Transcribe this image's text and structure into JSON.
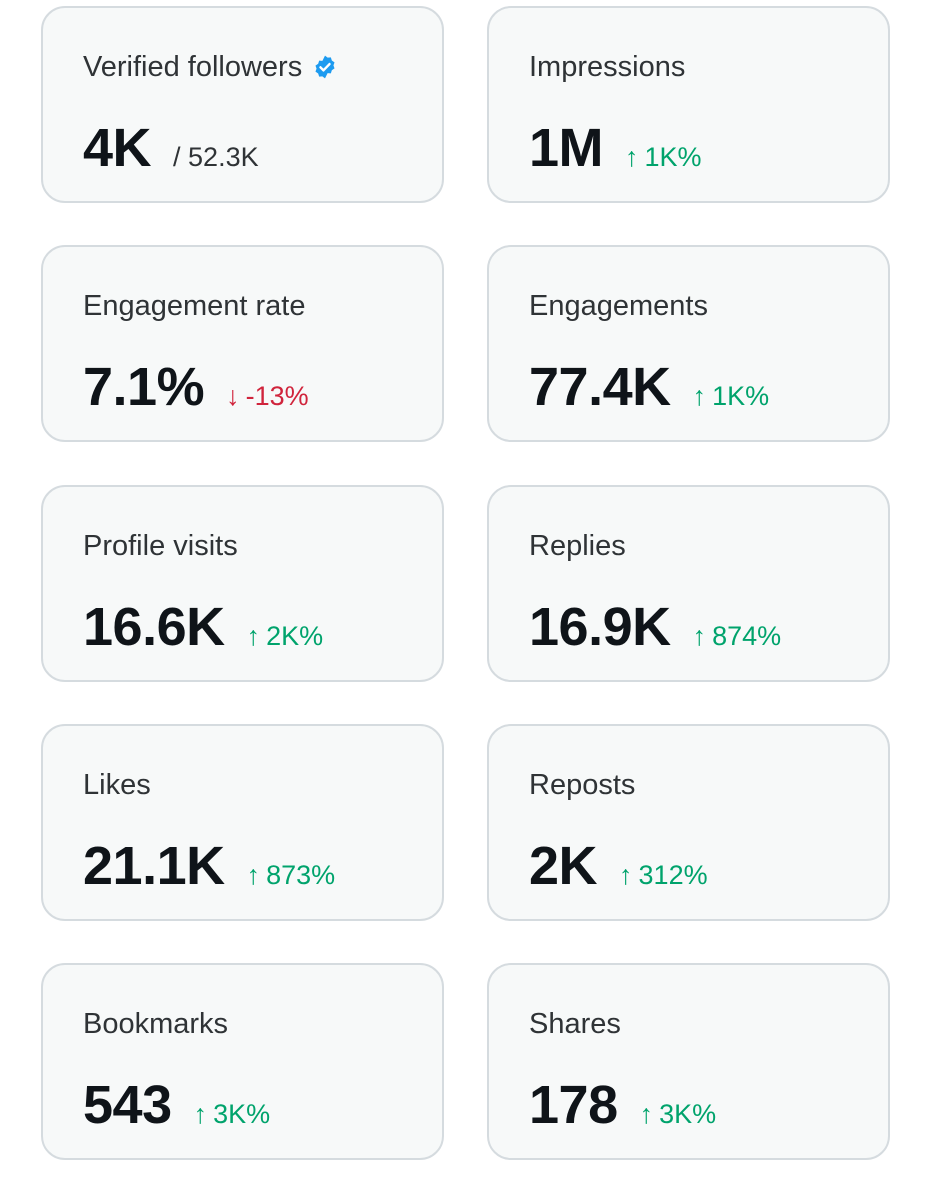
{
  "colors": {
    "card_background": "#f7f9f9",
    "card_border": "#d5dbdf",
    "positive": "#00a36c",
    "negative": "#d0243c",
    "verified_badge": "#1d9bf0"
  },
  "metrics": [
    {
      "title": "Verified followers",
      "icon": "verified-badge-icon",
      "value": "4K",
      "total": "/ 52.3K"
    },
    {
      "title": "Impressions",
      "value": "1M",
      "delta_arrow": "↑",
      "delta": "1K%",
      "trend": "up"
    },
    {
      "title": "Engagement rate",
      "value": "7.1%",
      "delta_arrow": "↓",
      "delta": "-13%",
      "trend": "down"
    },
    {
      "title": "Engagements",
      "value": "77.4K",
      "delta_arrow": "↑",
      "delta": "1K%",
      "trend": "up"
    },
    {
      "title": "Profile visits",
      "value": "16.6K",
      "delta_arrow": "↑",
      "delta": "2K%",
      "trend": "up"
    },
    {
      "title": "Replies",
      "value": "16.9K",
      "delta_arrow": "↑",
      "delta": "874%",
      "trend": "up"
    },
    {
      "title": "Likes",
      "value": "21.1K",
      "delta_arrow": "↑",
      "delta": "873%",
      "trend": "up"
    },
    {
      "title": "Reposts",
      "value": "2K",
      "delta_arrow": "↑",
      "delta": "312%",
      "trend": "up"
    },
    {
      "title": "Bookmarks",
      "value": "543",
      "delta_arrow": "↑",
      "delta": "3K%",
      "trend": "up"
    },
    {
      "title": "Shares",
      "value": "178",
      "delta_arrow": "↑",
      "delta": "3K%",
      "trend": "up"
    }
  ]
}
